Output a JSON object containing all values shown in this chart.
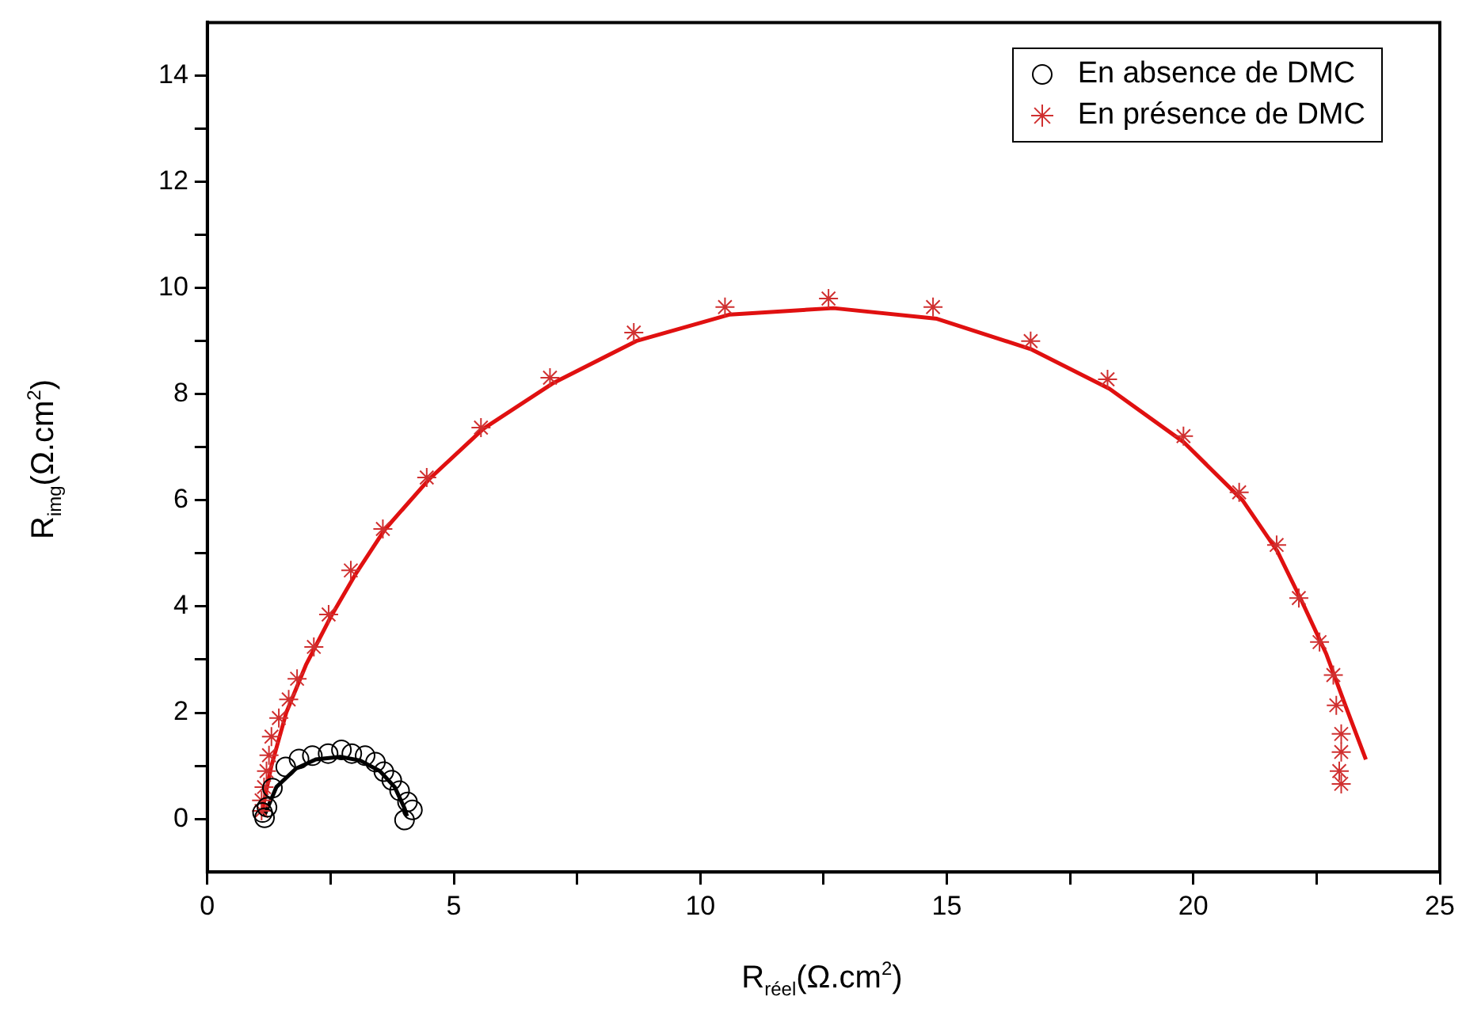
{
  "chart_data": {
    "type": "scatter",
    "xlabel": "R$_{réel}$(Ω.cm$^{2}$)",
    "ylabel": "R$_{img}$(Ω.cm$^{2}$)",
    "xlim": [
      0,
      25
    ],
    "ylim": [
      -1,
      15
    ],
    "xticks": [
      0,
      {
        "value": 2.5,
        "label": null
      },
      5,
      {
        "value": 7.5,
        "label": null
      },
      10,
      {
        "value": 12.5,
        "label": null
      },
      15,
      {
        "value": 17.5,
        "label": null
      },
      20,
      {
        "value": 22.5,
        "label": null
      },
      25
    ],
    "yticks": [
      0,
      {
        "value": 1,
        "label": null
      },
      2,
      {
        "value": 3,
        "label": null
      },
      4,
      {
        "value": 5,
        "label": null
      },
      6,
      {
        "value": 7,
        "label": null
      },
      8,
      {
        "value": 9,
        "label": null
      },
      10,
      {
        "value": 11,
        "label": null
      },
      12,
      {
        "value": 13,
        "label": null
      },
      14
    ],
    "grid": false,
    "legend": "top right",
    "series": [
      {
        "name": "En absence de DMC",
        "type": "scatter",
        "marker": "circle",
        "color": "#000000",
        "x": [
          1.16,
          1.12,
          1.21,
          1.32,
          1.59,
          1.86,
          2.13,
          2.45,
          2.72,
          2.93,
          3.2,
          3.41,
          3.58,
          3.74,
          3.9,
          4.06,
          4.16,
          4.0
        ],
        "values": [
          0.02,
          0.12,
          0.22,
          0.58,
          0.98,
          1.13,
          1.19,
          1.23,
          1.3,
          1.23,
          1.19,
          1.07,
          0.89,
          0.73,
          0.53,
          0.32,
          0.17,
          -0.02
        ]
      },
      {
        "name": "En présence de DMC",
        "type": "scatter",
        "marker": "cross",
        "color": "#d03030",
        "x": [
          1.1,
          1.1,
          1.15,
          1.2,
          1.25,
          1.3,
          1.45,
          1.65,
          1.82,
          2.16,
          2.46,
          2.91,
          3.56,
          4.45,
          5.55,
          6.95,
          8.65,
          10.5,
          12.6,
          14.72,
          16.7,
          18.26,
          19.8,
          20.93,
          21.69,
          22.14,
          22.56,
          22.84,
          22.9,
          23.0,
          23.0,
          22.96,
          23.0
        ],
        "values": [
          0.15,
          0.35,
          0.6,
          0.9,
          1.2,
          1.55,
          1.9,
          2.25,
          2.64,
          3.24,
          3.85,
          4.68,
          5.46,
          6.43,
          7.37,
          8.31,
          9.16,
          9.64,
          9.8,
          9.64,
          9.0,
          8.28,
          7.21,
          6.15,
          5.16,
          4.16,
          3.33,
          2.71,
          2.14,
          1.6,
          1.26,
          0.9,
          0.66
        ]
      },
      {
        "type": "line",
        "marker": "none",
        "color": "#000000",
        "x": [
          1.15,
          1.4,
          1.8,
          2.2,
          2.7,
          3.1,
          3.5,
          3.8,
          4.0,
          4.05
        ],
        "values": [
          0.05,
          0.6,
          0.95,
          1.12,
          1.17,
          1.1,
          0.9,
          0.6,
          0.2,
          0.05
        ]
      },
      {
        "type": "line",
        "marker": "none",
        "color": "#e01010",
        "x": [
          1.1,
          1.3,
          1.6,
          2.0,
          2.5,
          3.0,
          3.6,
          4.5,
          5.6,
          7.0,
          8.7,
          10.6,
          12.7,
          14.8,
          16.7,
          18.3,
          19.8,
          21.0,
          21.7,
          22.2,
          22.7,
          23.1,
          23.5
        ],
        "values": [
          0.1,
          1.0,
          2.0,
          2.9,
          3.8,
          4.6,
          5.45,
          6.4,
          7.35,
          8.2,
          9.0,
          9.5,
          9.62,
          9.42,
          8.85,
          8.1,
          7.1,
          6.0,
          5.05,
          4.1,
          3.1,
          2.1,
          1.12
        ]
      }
    ]
  }
}
